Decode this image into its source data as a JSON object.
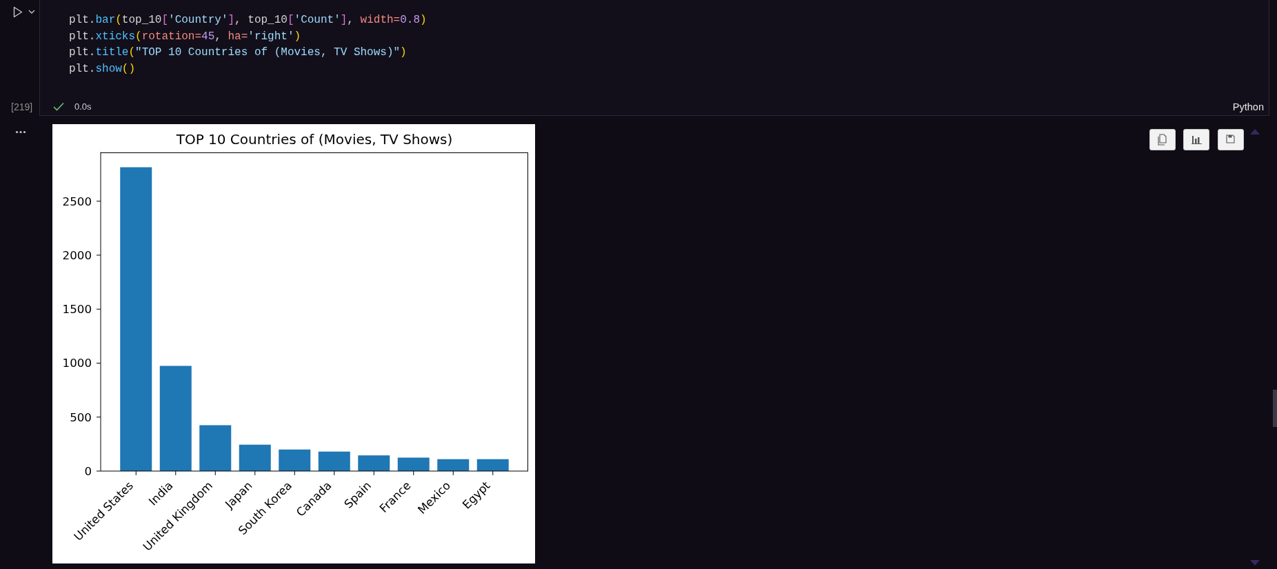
{
  "chart_data": {
    "type": "bar",
    "title": "TOP 10 Countries of (Movies, TV Shows)",
    "categories": [
      "United States",
      "India",
      "United Kingdom",
      "Japan",
      "South Korea",
      "Canada",
      "Spain",
      "France",
      "Mexico",
      "Egypt"
    ],
    "values": [
      2815,
      975,
      425,
      245,
      200,
      180,
      145,
      125,
      110,
      110
    ],
    "color": "#1f77b4",
    "ylim": [
      0,
      2955
    ],
    "yticks": [
      0,
      500,
      1000,
      1500,
      2000,
      2500
    ],
    "annotations": [
      "plt.bar(top_10['Country'], top_10['Count'], width=0.8)",
      "plt.xticks(rotation=45, ha='right')",
      "plt.title(\"TOP 10 Countries of (Movies, TV Shows)\")",
      "plt.show()",
      "[219]",
      "0.0s",
      "Python"
    ]
  }
}
